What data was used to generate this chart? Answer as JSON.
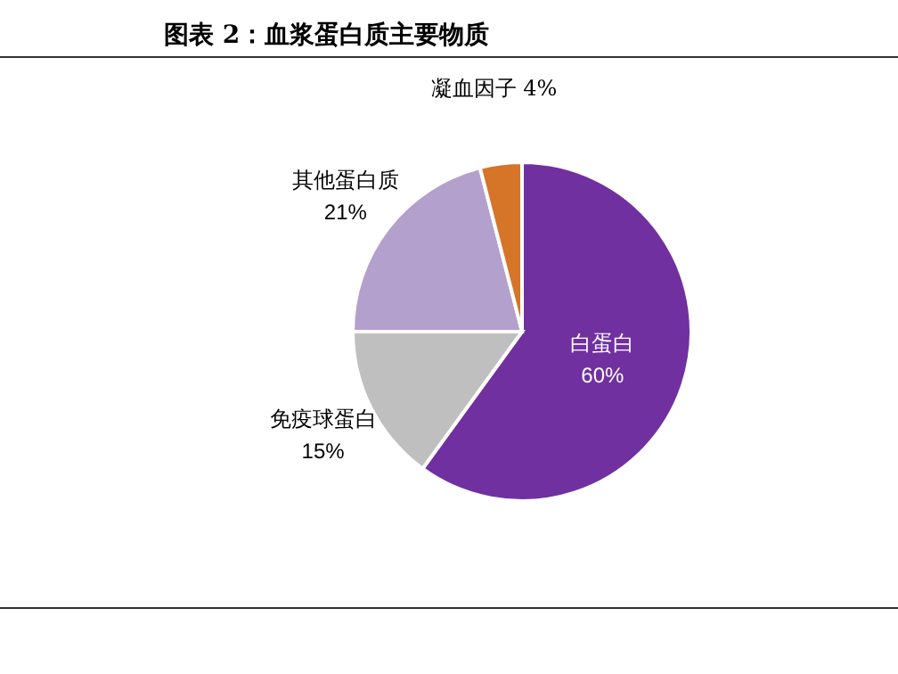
{
  "chart_data": {
    "type": "pie",
    "title": "图表 2：血浆蛋白质主要物质",
    "categories": [
      "白蛋白",
      "免疫球蛋白",
      "其他蛋白质",
      "凝血因子"
    ],
    "values": [
      60,
      15,
      21,
      4
    ],
    "value_labels": [
      "60%",
      "15%",
      "21%",
      "4%"
    ],
    "colors": [
      "#7030a0",
      "#bfbfbf",
      "#b4a0cc",
      "#d67428"
    ]
  }
}
